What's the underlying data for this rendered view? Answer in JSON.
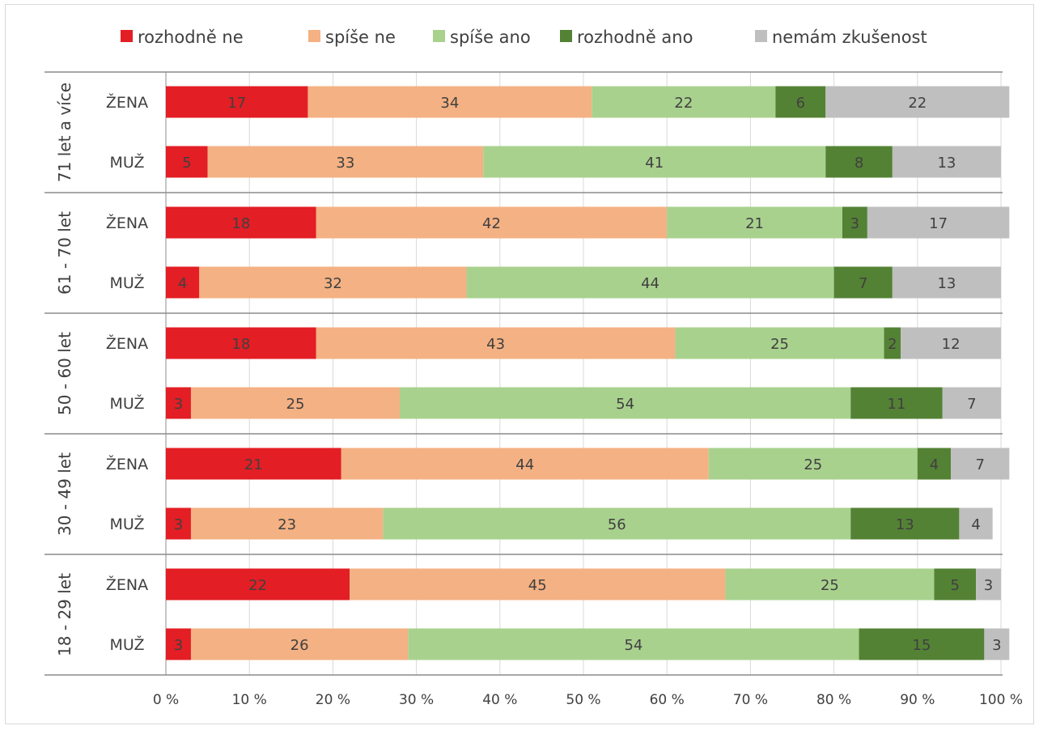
{
  "chart_data": {
    "type": "bar",
    "orientation": "horizontal",
    "stacked": true,
    "legend_position": "top",
    "grid": true,
    "xlim": [
      0,
      100
    ],
    "x_ticks": [
      "0 %",
      "10 %",
      "20 %",
      "30 %",
      "40 %",
      "50 %",
      "60 %",
      "70 %",
      "80 %",
      "90 %",
      "100 %"
    ],
    "series": [
      {
        "name": "rozhodně ne",
        "color": "#e31e24"
      },
      {
        "name": "spíše ne",
        "color": "#f4b183"
      },
      {
        "name": "spíše ano",
        "color": "#a9d18e"
      },
      {
        "name": "rozhodně ano",
        "color": "#548235"
      },
      {
        "name": "nemám zkušenost",
        "color": "#bfbfbf"
      }
    ],
    "groups": [
      {
        "label": "71 let a více",
        "rows": [
          {
            "label": "ŽENA",
            "values": [
              17,
              34,
              22,
              6,
              22
            ]
          },
          {
            "label": "MUŽ",
            "values": [
              5,
              33,
              41,
              8,
              13
            ]
          }
        ]
      },
      {
        "label": "61 - 70 let",
        "rows": [
          {
            "label": "ŽENA",
            "values": [
              18,
              42,
              21,
              3,
              17
            ]
          },
          {
            "label": "MUŽ",
            "values": [
              4,
              32,
              44,
              7,
              13
            ]
          }
        ]
      },
      {
        "label": "50 - 60 let",
        "rows": [
          {
            "label": "ŽENA",
            "values": [
              18,
              43,
              25,
              2,
              12
            ]
          },
          {
            "label": "MUŽ",
            "values": [
              3,
              25,
              54,
              11,
              7
            ]
          }
        ]
      },
      {
        "label": "30 - 49 let",
        "rows": [
          {
            "label": "ŽENA",
            "values": [
              21,
              44,
              25,
              4,
              7
            ]
          },
          {
            "label": "MUŽ",
            "values": [
              3,
              23,
              56,
              13,
              4
            ]
          }
        ]
      },
      {
        "label": "18 - 29 let",
        "rows": [
          {
            "label": "ŽENA",
            "values": [
              22,
              45,
              25,
              5,
              3
            ]
          },
          {
            "label": "MUŽ",
            "values": [
              3,
              26,
              54,
              15,
              3
            ]
          }
        ]
      }
    ]
  }
}
